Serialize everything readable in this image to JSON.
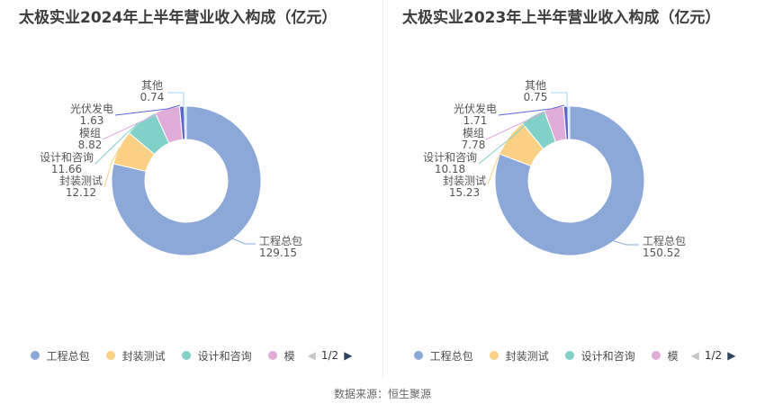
{
  "footer": {
    "source": "数据来源：恒生聚源"
  },
  "chart_data": [
    {
      "type": "pie",
      "title": "太极实业2024年上半年营业收入构成（亿元）",
      "unit_note": "亿元",
      "segments": [
        {
          "label": "工程总包",
          "value": 129.15,
          "color": "#8CA8D9"
        },
        {
          "label": "封装测试",
          "value": 12.12,
          "color": "#FAD184"
        },
        {
          "label": "设计和咨询",
          "value": 11.66,
          "color": "#82D1C9"
        },
        {
          "label": "模组",
          "value": 8.82,
          "color": "#E0ACD8"
        },
        {
          "label": "光伏发电",
          "value": 1.63,
          "color": "#5F63D8"
        },
        {
          "label": "其他",
          "value": 0.74,
          "color": "#A2D8F0"
        }
      ],
      "legend": {
        "items": [
          "工程总包",
          "封装测试",
          "设计和咨询",
          "模"
        ],
        "page": "1/2",
        "prev_icon": "◀",
        "next_icon": "▶"
      }
    },
    {
      "type": "pie",
      "title": "太极实业2023年上半年营业收入构成（亿元）",
      "unit_note": "亿元",
      "segments": [
        {
          "label": "工程总包",
          "value": 150.52,
          "color": "#8CA8D9"
        },
        {
          "label": "封装测试",
          "value": 15.23,
          "color": "#FAD184"
        },
        {
          "label": "设计和咨询",
          "value": 10.18,
          "color": "#82D1C9"
        },
        {
          "label": "模组",
          "value": 7.78,
          "color": "#E0ACD8"
        },
        {
          "label": "光伏发电",
          "value": 1.71,
          "color": "#5F63D8"
        },
        {
          "label": "其他",
          "value": 0.75,
          "color": "#A2D8F0"
        }
      ],
      "legend": {
        "items": [
          "工程总包",
          "封装测试",
          "设计和咨询",
          "模"
        ],
        "page": "1/2",
        "prev_icon": "◀",
        "next_icon": "▶"
      }
    }
  ]
}
